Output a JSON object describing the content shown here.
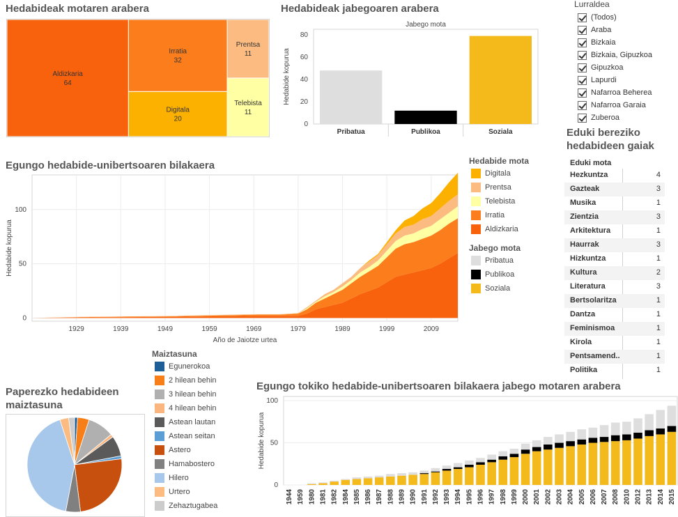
{
  "treemap": {
    "title": "Hedabideak motaren arabera",
    "cells": [
      {
        "name": "Aldizkaria",
        "value": "64",
        "color": "#f9620c"
      },
      {
        "name": "Irratia",
        "value": "32",
        "color": "#fb7d1b"
      },
      {
        "name": "Digitala",
        "value": "20",
        "color": "#fcb000"
      },
      {
        "name": "Prentsa",
        "value": "11",
        "color": "#fcbb80"
      },
      {
        "name": "Telebista",
        "value": "11",
        "color": "#ffffa3"
      }
    ]
  },
  "ownership": {
    "title": "Hedabideak jabegoaren arabera",
    "chart_data": {
      "type": "bar",
      "title": "Jabego mota",
      "ylabel": "Hedabide kopurua",
      "categories": [
        "Pribatua",
        "Publikoa",
        "Soziala"
      ],
      "values": [
        48,
        12,
        79
      ],
      "colors": [
        "#dedede",
        "#000000",
        "#f4b91b"
      ],
      "ylim": [
        0,
        85
      ],
      "yticks": [
        0,
        20,
        40,
        60,
        80
      ]
    }
  },
  "region_filter": {
    "title": "Lurraldea",
    "items": [
      "(Todos)",
      "Araba",
      "Bizkaia",
      "Bizkaia, Gipuzkoa",
      "Gipuzkoa",
      "Lapurdi",
      "Nafarroa Beherea",
      "Nafarroa Garaia",
      "Zuberoa"
    ]
  },
  "evolution": {
    "title": "Egungo hedabide-unibertsoaren bilakaera",
    "chart_data": {
      "type": "area",
      "xlabel": "Año de Jaiotze urtea",
      "ylabel": "Hedabide kopurua",
      "xlim": [
        1919,
        2015
      ],
      "ylim": [
        -3,
        132
      ],
      "xticks": [
        1929,
        1939,
        1949,
        1959,
        1969,
        1979,
        1989,
        1999,
        2009
      ],
      "yticks": [
        0,
        50,
        100
      ],
      "x": [
        1919,
        1930,
        1950,
        1970,
        1975,
        1979,
        1981,
        1983,
        1985,
        1987,
        1989,
        1991,
        1993,
        1995,
        1997,
        1999,
        2001,
        2003,
        2005,
        2007,
        2009,
        2011,
        2013,
        2015
      ],
      "series": [
        {
          "name": "Aldizkaria",
          "color": "#f9620c",
          "values": [
            0,
            0.5,
            1,
            2,
            2,
            2,
            4,
            8,
            10,
            12,
            14,
            18,
            22,
            25,
            28,
            33,
            38,
            40,
            42,
            44,
            46,
            50,
            55,
            60
          ]
        },
        {
          "name": "Irratia",
          "color": "#fb7d1b",
          "values": [
            0,
            0.3,
            0.5,
            1,
            1,
            2,
            4,
            6,
            8,
            10,
            12,
            14,
            16,
            18,
            20,
            23,
            26,
            28,
            28,
            29,
            30,
            31,
            32,
            32
          ]
        },
        {
          "name": "Telebista",
          "color": "#ffffa3",
          "values": [
            0,
            0,
            0,
            0,
            0,
            0,
            1,
            1,
            2,
            2,
            3,
            3,
            4,
            4,
            5,
            6,
            7,
            8,
            8,
            9,
            9,
            10,
            10,
            11
          ]
        },
        {
          "name": "Prentsa",
          "color": "#fcbb80",
          "values": [
            0,
            0.2,
            0.3,
            0.5,
            0.5,
            0.5,
            1,
            1,
            2,
            2,
            3,
            3,
            4,
            5,
            5,
            6,
            7,
            8,
            8,
            9,
            9,
            10,
            11,
            11
          ]
        },
        {
          "name": "Digitala",
          "color": "#fcb000",
          "values": [
            0,
            0,
            0,
            0,
            0,
            0,
            0,
            0,
            0,
            0,
            0,
            0,
            0,
            1,
            1,
            2,
            3,
            6,
            8,
            10,
            12,
            14,
            17,
            20
          ]
        }
      ]
    }
  },
  "legend_type": {
    "title": "Hedabide mota",
    "items": [
      {
        "label": "Digitala",
        "color": "#fcb000"
      },
      {
        "label": "Prentsa",
        "color": "#fcbb80"
      },
      {
        "label": "Telebista",
        "color": "#ffffa3"
      },
      {
        "label": "Irratia",
        "color": "#fb7d1b"
      },
      {
        "label": "Aldizkaria",
        "color": "#f9620c"
      }
    ]
  },
  "legend_owner": {
    "title": "Jabego mota",
    "items": [
      {
        "label": "Pribatua",
        "color": "#dedede"
      },
      {
        "label": "Publikoa",
        "color": "#000000"
      },
      {
        "label": "Soziala",
        "color": "#f4b91b"
      }
    ]
  },
  "topics": {
    "title_line1": "Eduki bereziko",
    "title_line2": "hedabideen gaiak",
    "header": "Eduki mota",
    "rows": [
      {
        "name": "Hezkuntza",
        "value": "4"
      },
      {
        "name": "Gazteak",
        "value": "3"
      },
      {
        "name": "Musika",
        "value": "1"
      },
      {
        "name": "Zientzia",
        "value": "3"
      },
      {
        "name": "Arkitektura",
        "value": "1"
      },
      {
        "name": "Haurrak",
        "value": "3"
      },
      {
        "name": "Hizkuntza",
        "value": "1"
      },
      {
        "name": "Kultura",
        "value": "2"
      },
      {
        "name": "Literatura",
        "value": "3"
      },
      {
        "name": "Bertsolaritza",
        "value": "1"
      },
      {
        "name": "Dantza",
        "value": "1"
      },
      {
        "name": "Feminismoa",
        "value": "1"
      },
      {
        "name": "Kirola",
        "value": "1"
      },
      {
        "name": "Pentsamend..",
        "value": "1"
      },
      {
        "name": "Politika",
        "value": "1"
      }
    ]
  },
  "frequency": {
    "title_line1": "Paperezko hedabideen",
    "title_line2": "maiztasuna",
    "legend_title": "Maiztasuna",
    "chart_data": {
      "type": "pie",
      "slices": [
        {
          "label": "Egunerokoa",
          "value": 1,
          "color": "#1f5f98"
        },
        {
          "label": "2 hilean behin",
          "value": 4,
          "color": "#f87e17"
        },
        {
          "label": "3 hilean behin",
          "value": 9,
          "color": "#b0b0b0"
        },
        {
          "label": "4 hilean behin",
          "value": 1,
          "color": "#fbb57e"
        },
        {
          "label": "Astean lautan",
          "value": 7,
          "color": "#5a5a5a"
        },
        {
          "label": "Astean seitan",
          "value": 1,
          "color": "#5b9ed6"
        },
        {
          "label": "Astero",
          "value": 25,
          "color": "#c8500f"
        },
        {
          "label": "Hamabostero",
          "value": 5,
          "color": "#808080"
        },
        {
          "label": "Hilero",
          "value": 42,
          "color": "#a7c8ea"
        },
        {
          "label": "Urtero",
          "value": 3,
          "color": "#fcbb80"
        },
        {
          "label": "Zehaztugabea",
          "value": 2,
          "color": "#cccccc"
        }
      ]
    }
  },
  "local_evolution": {
    "title": "Egungo tokiko hedabide-unibertsoaren bilakaera jabego motaren arabera",
    "chart_data": {
      "type": "bar",
      "stacked": true,
      "ylabel": "Hedabide kopurua",
      "ylim": [
        0,
        105
      ],
      "yticks": [
        0,
        50,
        100
      ],
      "categories": [
        "1944",
        "1959",
        "1980",
        "1981",
        "1982",
        "1984",
        "1985",
        "1986",
        "1987",
        "1988",
        "1989",
        "1990",
        "1991",
        "1992",
        "1993",
        "1994",
        "1995",
        "1996",
        "1997",
        "1998",
        "1999",
        "2000",
        "2001",
        "2002",
        "2003",
        "2004",
        "2005",
        "2006",
        "2007",
        "2008",
        "2010",
        "2012",
        "2013",
        "2014",
        "2015"
      ],
      "series": [
        {
          "name": "Soziala",
          "color": "#f4b91b",
          "values": [
            0,
            0,
            1,
            2,
            4,
            6,
            7,
            8,
            9,
            10,
            11,
            12,
            13,
            15,
            17,
            19,
            21,
            24,
            27,
            30,
            33,
            37,
            40,
            42,
            44,
            46,
            48,
            50,
            51,
            52,
            53,
            55,
            58,
            60,
            63
          ]
        },
        {
          "name": "Publikoa",
          "color": "#000000",
          "values": [
            0,
            0,
            0,
            0,
            0,
            0,
            0,
            0,
            0,
            0,
            0,
            0,
            1,
            1,
            2,
            2,
            3,
            3,
            3,
            4,
            4,
            5,
            5,
            6,
            6,
            6,
            6,
            6,
            6,
            7,
            7,
            7,
            7,
            7,
            7
          ]
        },
        {
          "name": "Pribatua",
          "color": "#dedede",
          "values": [
            0,
            0,
            1,
            1,
            1,
            1,
            2,
            2,
            2,
            3,
            3,
            3,
            3,
            4,
            4,
            5,
            5,
            5,
            6,
            6,
            6,
            7,
            8,
            9,
            10,
            11,
            12,
            12,
            14,
            15,
            15,
            17,
            19,
            22,
            24
          ]
        }
      ]
    }
  }
}
